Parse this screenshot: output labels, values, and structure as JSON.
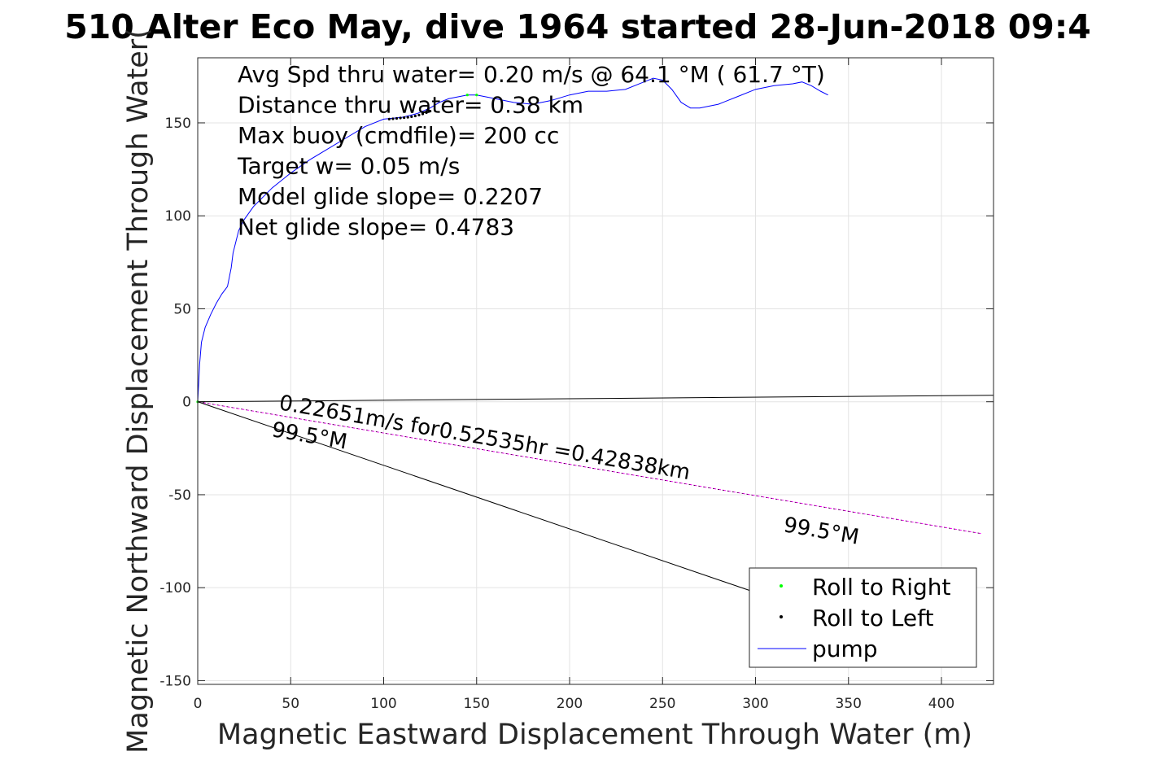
{
  "title": "510 Alter Eco May, dive 1964 started 28-Jun-2018 09:4",
  "chart_data": {
    "type": "line",
    "title": "510 Alter Eco May, dive 1964 started 28-Jun-2018 09:4",
    "xlabel": "Magnetic Eastward Displacement Through Water (m)",
    "ylabel": "Magnetic Northward Displacement Through Water(",
    "xlim": [
      0,
      428
    ],
    "ylim": [
      -152,
      185
    ],
    "xticks": [
      0,
      50,
      100,
      150,
      200,
      250,
      300,
      350,
      400
    ],
    "yticks": [
      -150,
      -100,
      -50,
      0,
      50,
      100,
      150
    ],
    "grid": true,
    "legend_position": "bottom-right",
    "info_lines": [
      "Avg Spd thru water=  0.20 m/s @  64.1 °M ( 61.7 °T)",
      "Distance thru water=  0.38 km",
      "Max buoy (cmdfile)= 200 cc",
      "Target w= 0.05 m/s",
      "Model glide slope= 0.2207",
      "Net glide slope= 0.4783"
    ],
    "annotations": {
      "current": "0.22651m/s for0.52535hr =0.42838km",
      "heading_near": "99.5°M",
      "heading_far": "99.5°M"
    },
    "series": [
      {
        "name": "pump",
        "color": "#0000ff",
        "x": [
          0,
          1,
          2,
          4,
          7,
          10,
          13,
          16,
          18,
          19,
          20,
          22,
          25,
          30,
          40,
          50,
          60,
          70,
          80,
          90,
          100,
          110,
          118,
          125,
          130,
          135,
          140,
          145,
          150,
          160,
          170,
          180,
          190,
          200,
          210,
          220,
          230,
          240,
          245,
          250,
          255,
          260,
          265,
          270,
          280,
          290,
          300,
          310,
          320,
          325,
          330,
          335,
          339
        ],
        "y": [
          0,
          20,
          32,
          40,
          47,
          53,
          58,
          62,
          72,
          80,
          84,
          92,
          98,
          105,
          115,
          123,
          130,
          136,
          142,
          148,
          152,
          153,
          155,
          158,
          161,
          163,
          164,
          165,
          165,
          163,
          161,
          160,
          162,
          165,
          167,
          167,
          168,
          172,
          174,
          173,
          168,
          161,
          158,
          158,
          160,
          164,
          168,
          170,
          171,
          172,
          170,
          167,
          165
        ]
      },
      {
        "name": "Roll to Left",
        "color": "#000000",
        "x": [
          103,
          105,
          107,
          109,
          111,
          113,
          115,
          117,
          119,
          121,
          123,
          125
        ],
        "y": [
          152,
          152.2,
          152.4,
          152.6,
          152.8,
          153,
          153.3,
          153.7,
          154.2,
          154.8,
          155.5,
          156.3
        ]
      },
      {
        "name": "Roll to Right",
        "color": "#00ff00",
        "x": [
          0,
          145,
          150
        ],
        "y": [
          0,
          165,
          165
        ]
      },
      {
        "name": "",
        "color": "#ff00ff",
        "x": [
          0,
          422
        ],
        "y": [
          0,
          -71
        ]
      },
      {
        "name": "",
        "color": "#000000",
        "x": [
          0,
          310
        ],
        "y": [
          0,
          -106
        ]
      },
      {
        "name": "",
        "color": "#000000",
        "x": [
          0,
          428
        ],
        "y": [
          0,
          3.5
        ]
      }
    ],
    "legend": [
      {
        "label": "Roll to Right",
        "marker": "dot",
        "color": "#00ff00"
      },
      {
        "label": "Roll to Left",
        "marker": "dot",
        "color": "#000000"
      },
      {
        "label": "pump",
        "marker": "line",
        "color": "#0000ff"
      }
    ]
  }
}
